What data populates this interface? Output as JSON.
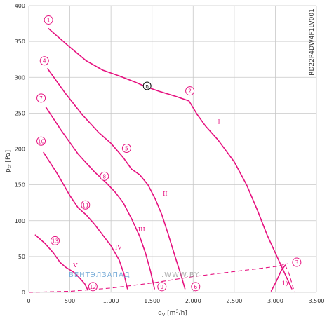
{
  "colors": {
    "curve": "#e6117f",
    "grid": "#c8c8c8",
    "text": "#333333",
    "watermark_blue": "#6fa7d6",
    "watermark_gray": "#8a8a8a"
  },
  "chart_data": {
    "type": "line",
    "title": "",
    "model_label": "RD22P4DW4F1LV001",
    "xlabel_html": [
      "q",
      "V",
      " [m",
      "3",
      "/h]"
    ],
    "ylabel_parts": [
      "p",
      "st",
      " [Pa]"
    ],
    "xlim": [
      0,
      3500
    ],
    "ylim": [
      0,
      400
    ],
    "xticks": [
      0,
      500,
      1000,
      1500,
      2000,
      2500,
      3000,
      3500
    ],
    "xtick_labels": [
      "0",
      "500",
      "1.000",
      "1.500",
      "2.000",
      "2.500",
      "3.000",
      "3.500"
    ],
    "yticks": [
      0,
      50,
      100,
      150,
      200,
      250,
      300,
      350,
      400
    ],
    "ytick_labels": [
      "0",
      "50",
      "100",
      "150",
      "200",
      "250",
      "300",
      "350",
      "400"
    ],
    "grid": true,
    "series": [
      {
        "name": "I",
        "label_at": [
          2300,
          235
        ],
        "points": [
          [
            240,
            368
          ],
          [
            500,
            342
          ],
          [
            700,
            323
          ],
          [
            900,
            310
          ],
          [
            1100,
            302
          ],
          [
            1300,
            293
          ],
          [
            1420,
            287
          ],
          [
            1600,
            280
          ],
          [
            1800,
            273
          ],
          [
            1950,
            267
          ],
          [
            2050,
            248
          ],
          [
            2150,
            232
          ],
          [
            2300,
            213
          ],
          [
            2500,
            182
          ],
          [
            2650,
            150
          ],
          [
            2780,
            115
          ],
          [
            2900,
            80
          ],
          [
            3000,
            55
          ],
          [
            3100,
            30
          ],
          [
            3200,
            5
          ]
        ]
      },
      {
        "name": "II",
        "label_at": [
          1630,
          135
        ],
        "points": [
          [
            230,
            312
          ],
          [
            450,
            277
          ],
          [
            650,
            248
          ],
          [
            850,
            223
          ],
          [
            1000,
            208
          ],
          [
            1150,
            188
          ],
          [
            1250,
            172
          ],
          [
            1350,
            164
          ],
          [
            1450,
            150
          ],
          [
            1540,
            130
          ],
          [
            1620,
            108
          ],
          [
            1700,
            80
          ],
          [
            1780,
            50
          ],
          [
            1850,
            25
          ],
          [
            1900,
            5
          ]
        ]
      },
      {
        "name": "III",
        "label_at": [
          1330,
          85
        ],
        "points": [
          [
            210,
            258
          ],
          [
            400,
            225
          ],
          [
            600,
            193
          ],
          [
            800,
            168
          ],
          [
            950,
            152
          ],
          [
            1050,
            140
          ],
          [
            1150,
            125
          ],
          [
            1250,
            103
          ],
          [
            1350,
            78
          ],
          [
            1420,
            55
          ],
          [
            1480,
            30
          ],
          [
            1530,
            5
          ]
        ]
      },
      {
        "name": "IV",
        "label_at": [
          1050,
          60
        ],
        "points": [
          [
            180,
            195
          ],
          [
            350,
            165
          ],
          [
            500,
            135
          ],
          [
            600,
            118
          ],
          [
            700,
            108
          ],
          [
            800,
            95
          ],
          [
            900,
            80
          ],
          [
            1000,
            65
          ],
          [
            1100,
            45
          ],
          [
            1160,
            25
          ],
          [
            1200,
            5
          ]
        ]
      },
      {
        "name": "V",
        "label_at": [
          540,
          35
        ],
        "points": [
          [
            80,
            80
          ],
          [
            200,
            68
          ],
          [
            300,
            55
          ],
          [
            380,
            42
          ],
          [
            450,
            35
          ],
          [
            550,
            28
          ],
          [
            620,
            20
          ],
          [
            680,
            12
          ],
          [
            720,
            3
          ]
        ]
      }
    ],
    "system_curve": {
      "name": "system",
      "points": [
        [
          0,
          0
        ],
        [
          500,
          1.5
        ],
        [
          1000,
          6
        ],
        [
          1500,
          13
        ],
        [
          2000,
          22
        ],
        [
          2500,
          29
        ],
        [
          3000,
          36
        ],
        [
          3150,
          40
        ]
      ]
    },
    "extra_dashed": [
      {
        "name": "right-dash",
        "points": [
          [
            3120,
            38
          ],
          [
            3170,
            25
          ],
          [
            3230,
            1
          ]
        ]
      }
    ],
    "small_curve": {
      "name": "1)",
      "label_at": [
        3080,
        10
      ],
      "points": [
        [
          2950,
          2
        ],
        [
          3010,
          15
        ],
        [
          3070,
          30
        ],
        [
          3120,
          38
        ]
      ]
    },
    "markers": [
      {
        "label": "1",
        "at": [
          240,
          380
        ]
      },
      {
        "label": "2",
        "at": [
          1960,
          281
        ]
      },
      {
        "label": "3",
        "at": [
          3260,
          42
        ]
      },
      {
        "label": "4",
        "at": [
          190,
          323
        ]
      },
      {
        "label": "5",
        "at": [
          1190,
          201
        ]
      },
      {
        "label": "6",
        "at": [
          2030,
          8
        ]
      },
      {
        "label": "7",
        "at": [
          150,
          271
        ]
      },
      {
        "label": "8",
        "at": [
          920,
          162
        ]
      },
      {
        "label": "9",
        "at": [
          1620,
          8
        ]
      },
      {
        "label": "10",
        "at": [
          150,
          211
        ]
      },
      {
        "label": "11",
        "at": [
          690,
          122
        ]
      },
      {
        "label": "12",
        "at": [
          780,
          8
        ]
      },
      {
        "label": "13",
        "at": [
          320,
          72
        ]
      }
    ],
    "eta_marker": {
      "label": "η",
      "at": [
        1440,
        288
      ]
    },
    "watermark": {
      "part1": "ВЕНТЭЛЗАПАД",
      "part2": ".WWW.BY"
    }
  }
}
